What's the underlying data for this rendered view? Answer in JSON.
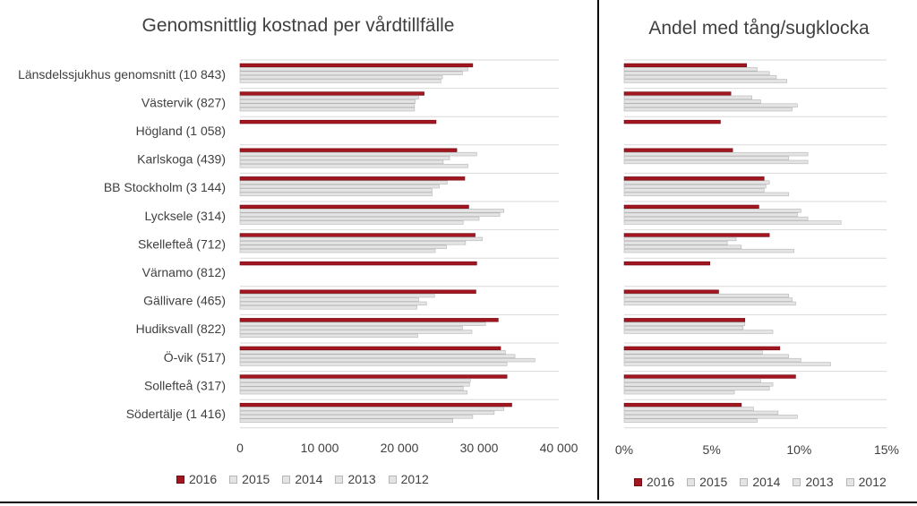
{
  "colors": {
    "2016": "#a3151f",
    "other_fill": "#e4e4e4",
    "other_stroke": "#b5b5b5",
    "gridline": "#d9d9d9"
  },
  "chart_data": [
    {
      "type": "bar",
      "orientation": "horizontal",
      "title": "Genomsnittlig kostnad per vårdtillfälle",
      "categories": [
        "Länsdelssjukhus genomsnitt (10 843)",
        "Västervik (827)",
        "Högland (1 058)",
        "Karlskoga (439)",
        "BB Stockholm (3 144)",
        "Lycksele (314)",
        "Skellefteå (712)",
        "Värnamo (812)",
        "Gällivare (465)",
        "Hudiksvall (822)",
        "Ö-vik (517)",
        "Sollefteå (317)",
        "Södertälje (1 416)"
      ],
      "series": [
        {
          "name": "2016",
          "values": [
            29200,
            23100,
            24600,
            27200,
            28200,
            28700,
            29500,
            29700,
            29600,
            32400,
            32700,
            33500,
            34100
          ]
        },
        {
          "name": "2015",
          "values": [
            28600,
            22400,
            null,
            29700,
            26000,
            33100,
            30400,
            null,
            24400,
            30800,
            33300,
            28900,
            33100
          ]
        },
        {
          "name": "2014",
          "values": [
            27900,
            22000,
            null,
            26300,
            25000,
            32600,
            28300,
            null,
            22400,
            27900,
            34500,
            28800,
            31900
          ]
        },
        {
          "name": "2013",
          "values": [
            25400,
            21900,
            null,
            25500,
            24100,
            30000,
            25900,
            null,
            23400,
            29100,
            37000,
            28000,
            29200
          ]
        },
        {
          "name": "2012",
          "values": [
            25200,
            21900,
            null,
            28600,
            24100,
            28000,
            24500,
            null,
            22200,
            22300,
            33500,
            28500,
            26700
          ]
        }
      ],
      "xlim": [
        0,
        40000
      ],
      "x_ticks": [
        "0",
        "10 000",
        "20 000",
        "30 000",
        "40 000"
      ],
      "grid": true,
      "legend": "bottom"
    },
    {
      "type": "bar",
      "orientation": "horizontal",
      "title": "Andel med tång/sugklocka",
      "categories": [
        "Länsdelssjukhus genomsnitt (10 843)",
        "Västervik (827)",
        "Högland (1 058)",
        "Karlskoga (439)",
        "BB Stockholm (3 144)",
        "Lycksele (314)",
        "Skellefteå (712)",
        "Värnamo (812)",
        "Gällivare (465)",
        "Hudiksvall (822)",
        "Ö-vik (517)",
        "Sollefteå (317)",
        "Södertälje (1 416)"
      ],
      "series": [
        {
          "name": "2016",
          "values": [
            7.0,
            6.1,
            5.5,
            6.2,
            8.0,
            7.7,
            8.3,
            4.9,
            5.4,
            6.9,
            8.9,
            9.8,
            6.7
          ]
        },
        {
          "name": "2015",
          "values": [
            7.6,
            7.3,
            null,
            10.5,
            8.3,
            10.1,
            6.4,
            null,
            9.4,
            6.9,
            7.9,
            7.8,
            7.4
          ]
        },
        {
          "name": "2014",
          "values": [
            8.3,
            7.8,
            null,
            9.4,
            8.1,
            9.9,
            5.9,
            null,
            9.6,
            6.8,
            9.4,
            8.5,
            8.8
          ]
        },
        {
          "name": "2013",
          "values": [
            8.7,
            9.9,
            null,
            10.5,
            8.0,
            10.5,
            6.7,
            null,
            9.8,
            8.5,
            10.1,
            8.3,
            9.9
          ]
        },
        {
          "name": "2012",
          "values": [
            9.3,
            9.6,
            null,
            null,
            9.4,
            12.4,
            9.7,
            null,
            null,
            null,
            11.8,
            6.3,
            7.6
          ]
        }
      ],
      "xlim": [
        0,
        15
      ],
      "x_ticks": [
        "0%",
        "5%",
        "10%",
        "15%"
      ],
      "grid": true,
      "legend": "bottom"
    }
  ]
}
